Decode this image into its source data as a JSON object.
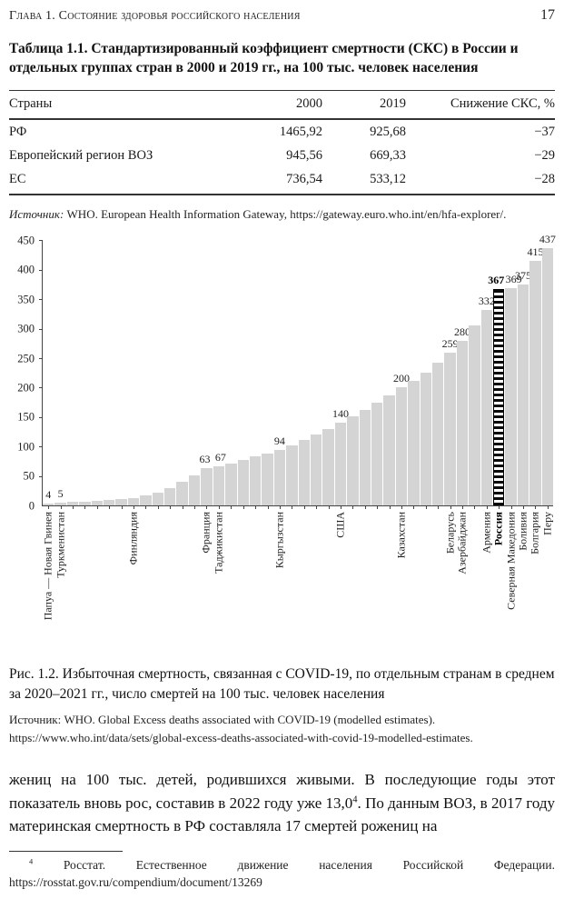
{
  "page": {
    "header": {
      "chapter": "Глава 1. Состояние здоровья российского населения",
      "page_number": "17"
    },
    "table_block": {
      "title": "Таблица 1.1. Стандартизированный коэффициент смертности (СКС) в России и отдельных группах стран в 2000 и 2019 гг., на 100 тыс. человек населения",
      "columns": [
        "Страны",
        "2000",
        "2019",
        "Снижение СКС, %"
      ],
      "rows": [
        [
          "РФ",
          "1465,92",
          "925,68",
          "−37"
        ],
        [
          "Европейский регион ВОЗ",
          "945,56",
          "669,33",
          "−29"
        ],
        [
          "ЕС",
          "736,54",
          "533,12",
          "−28"
        ]
      ],
      "source_label": "Источник:",
      "source_text": " WHO. European Health Information Gateway, https://gateway.euro.who.int/en/hfa-explorer/."
    },
    "figure": {
      "caption": "Рис. 1.2. Избыточная смертность, связанная с COVID-19, по отдельным странам в среднем за 2020–2021 гг., число смертей на 100 тыс. человек населения",
      "source_label": "Источник:",
      "source_text": " WHO. Global Excess deaths associated with COVID-19 (modelled estimates). https://www.who.int/data/sets/global-excess-deaths-associated-with-covid-19-modelled-estimates."
    },
    "body": {
      "part1": "жениц на 100 тыс. детей, родившихся живыми. В последующие годы этот показатель вновь рос, составив в 2022 году уже 13,0",
      "sup": "4",
      "part2": ". По данным ВОЗ, в 2017 году материнская смертность в РФ составляла 17 смертей рожениц на"
    },
    "footnote": {
      "sup": "4",
      "text": " Росстат. Естественное движение населения Российской Федерации. https://rosstat.gov.ru/compendium/document/13269"
    }
  },
  "chart_data": {
    "type": "bar",
    "title": "Избыточная смертность, связанная с COVID-19, число смертей на 100 тыс. человек населения",
    "xlabel": "",
    "ylabel": "",
    "ylim": [
      0,
      450
    ],
    "yticks": [
      0,
      50,
      100,
      150,
      200,
      250,
      300,
      350,
      400,
      450
    ],
    "grid": false,
    "legend": "none",
    "bar_color": "#d4d4d4",
    "highlight_country": "Россия",
    "bars": [
      {
        "value": 4,
        "label": "Папуа — Новая Гвинея",
        "show_value": true
      },
      {
        "value": 5,
        "label": "Туркменистан",
        "show_value": true
      },
      {
        "value": 6
      },
      {
        "value": 7
      },
      {
        "value": 8
      },
      {
        "value": 9
      },
      {
        "value": 11
      },
      {
        "value": 13,
        "label": "Финляндия"
      },
      {
        "value": 17
      },
      {
        "value": 22
      },
      {
        "value": 30
      },
      {
        "value": 40
      },
      {
        "value": 51
      },
      {
        "value": 63,
        "label": "Франция",
        "show_value": true,
        "dx": -2
      },
      {
        "value": 67,
        "label": "Таджикистан",
        "show_value": true,
        "dx": 2
      },
      {
        "value": 72
      },
      {
        "value": 77
      },
      {
        "value": 83
      },
      {
        "value": 88
      },
      {
        "value": 94,
        "label": "Кыргызстан",
        "show_value": true
      },
      {
        "value": 102
      },
      {
        "value": 111
      },
      {
        "value": 120
      },
      {
        "value": 130
      },
      {
        "value": 140,
        "label": "США",
        "show_value": true
      },
      {
        "value": 151
      },
      {
        "value": 162
      },
      {
        "value": 174
      },
      {
        "value": 187
      },
      {
        "value": 200,
        "label": "Казахстан",
        "show_value": true
      },
      {
        "value": 212
      },
      {
        "value": 226
      },
      {
        "value": 242
      },
      {
        "value": 259,
        "label": "Беларусь",
        "show_value": true
      },
      {
        "value": 280,
        "label": "Азербайджан",
        "show_value": true
      },
      {
        "value": 305
      },
      {
        "value": 332,
        "label": "Армения",
        "show_value": true
      },
      {
        "value": 367,
        "label": "Россия",
        "show_value": true,
        "bold": true,
        "hatched": true,
        "dx": -3
      },
      {
        "value": 369,
        "label": "Северная Македония",
        "show_value": true,
        "dx": 3
      },
      {
        "value": 375,
        "label": "Боливия",
        "show_value": true
      },
      {
        "value": 415,
        "label": "Болгария",
        "show_value": true
      },
      {
        "value": 437,
        "label": "Перу",
        "show_value": true
      }
    ]
  }
}
